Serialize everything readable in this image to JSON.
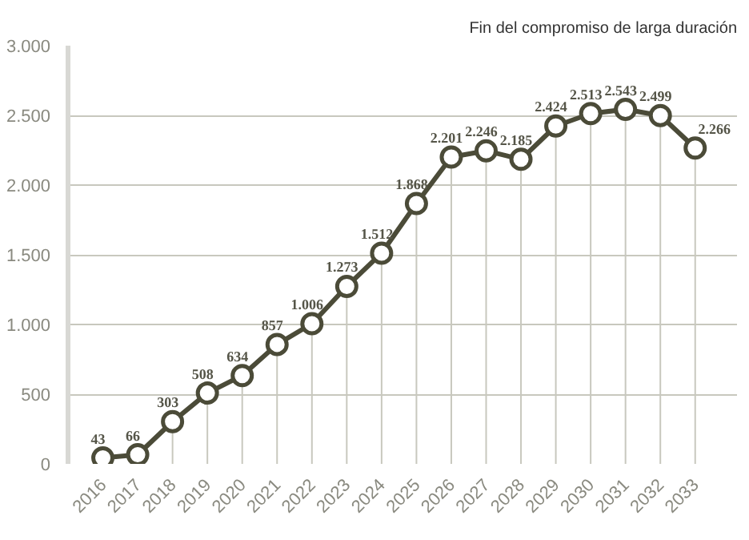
{
  "chart_data": {
    "type": "line",
    "title": "Fin del compromiso de larga duración",
    "categories": [
      "2016",
      "2017",
      "2018",
      "2019",
      "2020",
      "2021",
      "2022",
      "2023",
      "2024",
      "2025",
      "2026",
      "2027",
      "2028",
      "2029",
      "2030",
      "2031",
      "2032",
      "2033"
    ],
    "series": [
      {
        "color": "#4b4b38",
        "values": [
          43,
          66,
          303,
          508,
          634,
          857,
          1006,
          1273,
          1512,
          1868,
          2201,
          2246,
          2185,
          2424,
          2513,
          2543,
          2499,
          2266
        ],
        "value_labels": [
          "43",
          "66",
          "303",
          "508",
          "634",
          "857",
          "1.006",
          "1.273",
          "1.512",
          "1.868",
          "2.201",
          "2.246",
          "2.185",
          "2.424",
          "2.513",
          "2.543",
          "2.499",
          "2.266"
        ]
      }
    ],
    "ylim": [
      0,
      3000
    ],
    "yticks": [
      {
        "value": 0,
        "label": "0"
      },
      {
        "value": 500,
        "label": "500"
      },
      {
        "value": 1000,
        "label": "1.000"
      },
      {
        "value": 1500,
        "label": "1.500"
      },
      {
        "value": 2000,
        "label": "2.000"
      },
      {
        "value": 2500,
        "label": "2.500"
      },
      {
        "value": 3000,
        "label": "3.000"
      }
    ],
    "grid": "y",
    "marker": "circle",
    "line_style": "solid"
  }
}
